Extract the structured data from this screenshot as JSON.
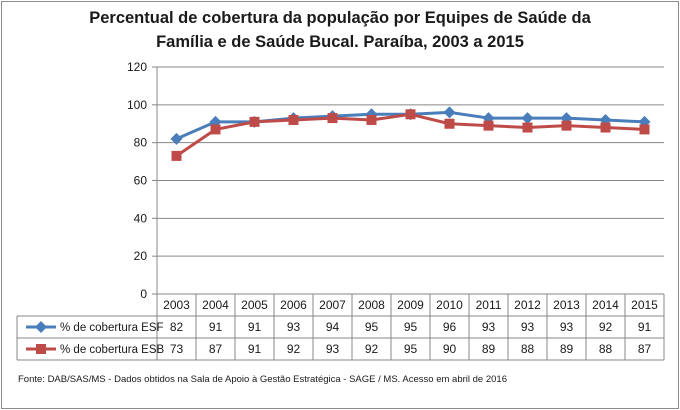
{
  "chart_data": {
    "type": "line",
    "title_line1": "Percentual de cobertura da população por Equipes de Saúde da",
    "title_line2": "Família e de Saúde Bucal. Paraíba, 2003 a 2015",
    "categories": [
      "2003",
      "2004",
      "2005",
      "2006",
      "2007",
      "2008",
      "2009",
      "2010",
      "2011",
      "2012",
      "2013",
      "2014",
      "2015"
    ],
    "series": [
      {
        "name": "% de cobertura ESF",
        "color": "#4a7ebb",
        "marker": "diamond",
        "values": [
          82,
          91,
          91,
          93,
          94,
          95,
          95,
          96,
          93,
          93,
          93,
          92,
          91
        ]
      },
      {
        "name": "% de cobertura ESB",
        "color": "#be4b48",
        "marker": "square",
        "values": [
          73,
          87,
          91,
          92,
          93,
          92,
          95,
          90,
          89,
          88,
          89,
          88,
          87
        ]
      }
    ],
    "ylim": [
      0,
      120
    ],
    "yticks": [
      "0",
      "20",
      "40",
      "60",
      "80",
      "100",
      "120"
    ],
    "grid": true,
    "legend_position": "data-table",
    "data_table": true,
    "source": "Fonte:  DAB/SAS/MS - Dados obtidos na Sala de Apoio à Gestão Estratégica - SAGE / MS. Acesso em abril  de 2016"
  }
}
